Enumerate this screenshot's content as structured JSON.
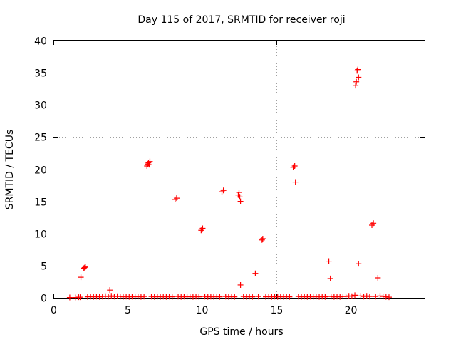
{
  "chart_data": {
    "type": "scatter",
    "title": "Day 115 of 2017, SRMTID for receiver roji",
    "xlabel": "GPS time / hours",
    "ylabel": "SRMTID / TECUs",
    "xlim": [
      0,
      25
    ],
    "ylim": [
      0,
      40
    ],
    "xticks": [
      0,
      5,
      10,
      15,
      20
    ],
    "yticks": [
      0,
      5,
      10,
      15,
      20,
      25,
      30,
      35,
      40
    ],
    "grid": true,
    "marker": "plus",
    "color": "#ff0000",
    "points": [
      [
        1.1,
        0.05
      ],
      [
        1.5,
        0.05
      ],
      [
        1.7,
        0.1
      ],
      [
        1.8,
        0.1
      ],
      [
        1.85,
        3.2
      ],
      [
        2.05,
        4.6
      ],
      [
        2.1,
        4.7
      ],
      [
        2.15,
        4.8
      ],
      [
        2.3,
        0.15
      ],
      [
        2.5,
        0.2
      ],
      [
        2.7,
        0.15
      ],
      [
        2.9,
        0.2
      ],
      [
        3.1,
        0.15
      ],
      [
        3.3,
        0.2
      ],
      [
        3.5,
        0.25
      ],
      [
        3.7,
        0.2
      ],
      [
        3.8,
        1.2
      ],
      [
        3.9,
        0.3
      ],
      [
        4.1,
        0.2
      ],
      [
        4.3,
        0.25
      ],
      [
        4.5,
        0.2
      ],
      [
        4.7,
        0.15
      ],
      [
        4.9,
        0.2
      ],
      [
        5.1,
        0.15
      ],
      [
        5.3,
        0.2
      ],
      [
        5.5,
        0.15
      ],
      [
        5.7,
        0.2
      ],
      [
        5.9,
        0.15
      ],
      [
        6.1,
        0.2
      ],
      [
        6.3,
        20.5
      ],
      [
        6.35,
        20.8
      ],
      [
        6.4,
        21.0
      ],
      [
        6.45,
        20.7
      ],
      [
        6.5,
        21.2
      ],
      [
        6.6,
        0.2
      ],
      [
        6.8,
        0.15
      ],
      [
        7.0,
        0.2
      ],
      [
        7.2,
        0.15
      ],
      [
        7.4,
        0.2
      ],
      [
        7.6,
        0.15
      ],
      [
        7.8,
        0.2
      ],
      [
        8.0,
        0.15
      ],
      [
        8.2,
        15.3
      ],
      [
        8.3,
        15.5
      ],
      [
        8.4,
        0.2
      ],
      [
        8.6,
        0.15
      ],
      [
        8.8,
        0.2
      ],
      [
        9.0,
        0.15
      ],
      [
        9.2,
        0.2
      ],
      [
        9.4,
        0.15
      ],
      [
        9.6,
        0.2
      ],
      [
        9.8,
        0.15
      ],
      [
        9.95,
        10.5
      ],
      [
        10.05,
        10.8
      ],
      [
        10.2,
        0.2
      ],
      [
        10.4,
        0.15
      ],
      [
        10.6,
        0.2
      ],
      [
        10.8,
        0.15
      ],
      [
        11.0,
        0.2
      ],
      [
        11.2,
        0.15
      ],
      [
        11.35,
        16.5
      ],
      [
        11.45,
        16.7
      ],
      [
        11.6,
        0.2
      ],
      [
        11.8,
        0.15
      ],
      [
        12.0,
        0.2
      ],
      [
        12.2,
        0.15
      ],
      [
        12.45,
        16.0
      ],
      [
        12.5,
        16.4
      ],
      [
        12.55,
        15.7
      ],
      [
        12.6,
        15.0
      ],
      [
        12.6,
        2.0
      ],
      [
        12.8,
        0.2
      ],
      [
        13.0,
        0.15
      ],
      [
        13.2,
        0.2
      ],
      [
        13.4,
        0.15
      ],
      [
        13.6,
        3.8
      ],
      [
        13.8,
        0.2
      ],
      [
        14.05,
        9.0
      ],
      [
        14.1,
        9.2
      ],
      [
        14.3,
        0.15
      ],
      [
        14.5,
        0.2
      ],
      [
        14.7,
        0.15
      ],
      [
        14.9,
        0.2
      ],
      [
        15.1,
        0.15
      ],
      [
        15.3,
        0.2
      ],
      [
        15.5,
        0.15
      ],
      [
        15.7,
        0.2
      ],
      [
        15.9,
        0.15
      ],
      [
        16.15,
        20.3
      ],
      [
        16.25,
        20.5
      ],
      [
        16.3,
        18.0
      ],
      [
        16.5,
        0.2
      ],
      [
        16.7,
        0.15
      ],
      [
        16.9,
        0.2
      ],
      [
        17.1,
        0.15
      ],
      [
        17.3,
        0.2
      ],
      [
        17.5,
        0.15
      ],
      [
        17.7,
        0.2
      ],
      [
        17.9,
        0.15
      ],
      [
        18.1,
        0.2
      ],
      [
        18.3,
        0.15
      ],
      [
        18.55,
        5.7
      ],
      [
        18.65,
        3.0
      ],
      [
        18.7,
        0.2
      ],
      [
        18.9,
        0.15
      ],
      [
        19.1,
        0.2
      ],
      [
        19.3,
        0.15
      ],
      [
        19.5,
        0.2
      ],
      [
        19.7,
        0.2
      ],
      [
        19.9,
        0.3
      ],
      [
        20.1,
        0.25
      ],
      [
        20.3,
        0.4
      ],
      [
        20.35,
        33.0
      ],
      [
        20.4,
        33.6
      ],
      [
        20.45,
        35.3
      ],
      [
        20.5,
        35.5
      ],
      [
        20.55,
        34.3
      ],
      [
        20.55,
        5.3
      ],
      [
        20.7,
        0.3
      ],
      [
        20.9,
        0.2
      ],
      [
        21.1,
        0.3
      ],
      [
        21.3,
        0.2
      ],
      [
        21.45,
        11.3
      ],
      [
        21.55,
        11.6
      ],
      [
        21.7,
        0.2
      ],
      [
        21.85,
        3.1
      ],
      [
        22.0,
        0.3
      ],
      [
        22.2,
        0.2
      ],
      [
        22.4,
        0.15
      ],
      [
        22.6,
        0.1
      ]
    ]
  }
}
